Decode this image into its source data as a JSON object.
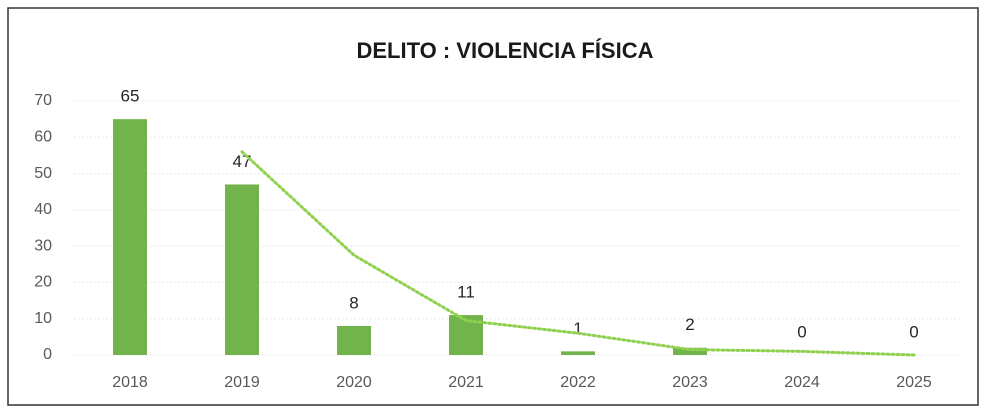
{
  "chart_data": {
    "type": "bar",
    "title": "DELITO : VIOLENCIA FÍSICA",
    "categories": [
      "2018",
      "2019",
      "2020",
      "2021",
      "2022",
      "2023",
      "2024",
      "2025"
    ],
    "values": [
      65,
      47,
      8,
      11,
      1,
      2,
      0,
      0
    ],
    "color": "#72b34c",
    "trendline": {
      "color": "#8fd14f",
      "values": [
        null,
        56,
        27.5,
        9.5,
        6,
        1.5,
        1,
        0
      ]
    },
    "ylim": [
      0,
      70
    ],
    "yticks": [
      0,
      10,
      20,
      30,
      40,
      50,
      60,
      70
    ],
    "grid": true
  }
}
